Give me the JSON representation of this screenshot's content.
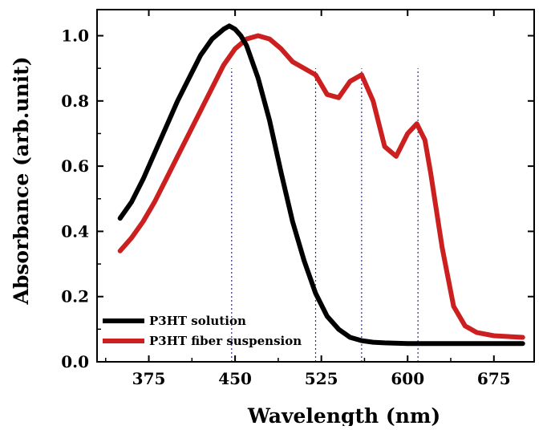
{
  "chart_data": {
    "type": "line",
    "title": "",
    "xlabel": "Wavelength (nm)",
    "ylabel": "Absorbance (arb.unit)",
    "xlim": [
      330,
      710
    ],
    "ylim": [
      0.0,
      1.08
    ],
    "xticks": [
      375,
      450,
      525,
      600,
      675
    ],
    "xtick_labels": [
      "375",
      "450",
      "525",
      "600",
      "675"
    ],
    "yticks": [
      0.0,
      0.2,
      0.4,
      0.6,
      0.8,
      1.0
    ],
    "ytick_labels": [
      "0.0",
      "0.2",
      "0.4",
      "0.6",
      "0.8",
      "1.0"
    ],
    "grid": false,
    "legend_position": "bottom-left",
    "series": [
      {
        "name": "P3HT solution",
        "color": "#000000",
        "x": [
          350,
          360,
          370,
          380,
          390,
          400,
          410,
          420,
          430,
          440,
          445,
          450,
          455,
          460,
          470,
          480,
          490,
          500,
          510,
          520,
          530,
          540,
          550,
          560,
          570,
          580,
          600,
          625,
          650,
          675,
          700
        ],
        "y": [
          0.44,
          0.49,
          0.56,
          0.64,
          0.72,
          0.8,
          0.87,
          0.94,
          0.99,
          1.02,
          1.03,
          1.02,
          1.0,
          0.97,
          0.87,
          0.74,
          0.58,
          0.43,
          0.31,
          0.21,
          0.14,
          0.1,
          0.075,
          0.065,
          0.06,
          0.058,
          0.056,
          0.056,
          0.056,
          0.056,
          0.056
        ]
      },
      {
        "name": "P3HT fiber suspension",
        "color": "#cc1f1f",
        "x": [
          350,
          360,
          370,
          380,
          390,
          400,
          410,
          420,
          430,
          440,
          450,
          460,
          470,
          480,
          490,
          500,
          510,
          520,
          530,
          540,
          550,
          560,
          570,
          580,
          590,
          600,
          608,
          615,
          620,
          630,
          640,
          650,
          660,
          675,
          700
        ],
        "y": [
          0.34,
          0.38,
          0.43,
          0.49,
          0.56,
          0.63,
          0.7,
          0.77,
          0.84,
          0.91,
          0.96,
          0.99,
          1.0,
          0.99,
          0.96,
          0.92,
          0.9,
          0.88,
          0.82,
          0.81,
          0.86,
          0.88,
          0.8,
          0.66,
          0.63,
          0.7,
          0.73,
          0.68,
          0.58,
          0.35,
          0.17,
          0.11,
          0.09,
          0.08,
          0.075
        ]
      }
    ],
    "markers": [
      {
        "x": 447,
        "color": "#2b2b8a"
      },
      {
        "x": 520,
        "color": "#2b2b8a"
      },
      {
        "x": 560,
        "color": "#2b2b8a"
      },
      {
        "x": 609,
        "color": "#2b2b8a"
      }
    ]
  }
}
